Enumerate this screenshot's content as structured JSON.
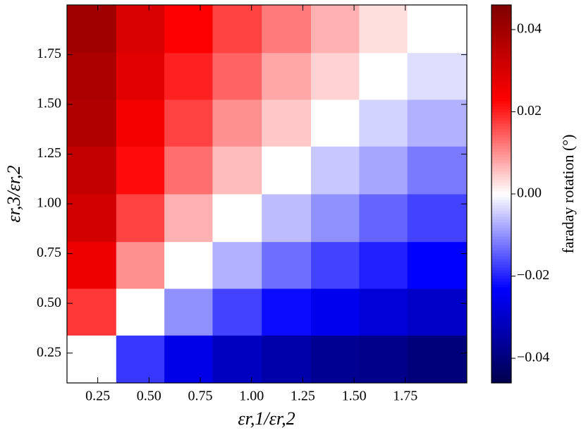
{
  "chart_data": {
    "type": "heatmap",
    "xlabel": "εr,1/εr,2",
    "ylabel": "εr,3/εr,2",
    "colorbar_label": "faraday rotation (°)",
    "colormap": "seismic",
    "x": [
      0.22,
      0.46,
      0.69,
      0.93,
      1.17,
      1.41,
      1.64,
      1.88
    ],
    "y": [
      0.22,
      0.46,
      0.69,
      0.93,
      1.17,
      1.41,
      1.64,
      1.88
    ],
    "z": [
      [
        0,
        -0.018,
        -0.026,
        -0.031,
        -0.034,
        -0.037,
        -0.038,
        -0.04
      ],
      [
        0.018,
        0,
        -0.01,
        -0.017,
        -0.022,
        -0.025,
        -0.028,
        -0.03
      ],
      [
        0.026,
        0.01,
        0,
        -0.007,
        -0.013,
        -0.017,
        -0.02,
        -0.023
      ],
      [
        0.031,
        0.017,
        0.007,
        0,
        -0.006,
        -0.01,
        -0.014,
        -0.017
      ],
      [
        0.034,
        0.022,
        0.013,
        0.006,
        0,
        -0.005,
        -0.008,
        -0.012
      ],
      [
        0.037,
        0.025,
        0.017,
        0.01,
        0.005,
        0,
        -0.004,
        -0.007
      ],
      [
        0.038,
        0.028,
        0.02,
        0.014,
        0.008,
        0.004,
        0,
        -0.003
      ],
      [
        0.04,
        0.03,
        0.023,
        0.017,
        0.012,
        0.007,
        0.003,
        0
      ]
    ],
    "xlim": [
      0.1,
      2.05
    ],
    "ylim": [
      0.1,
      2.0
    ],
    "xticks": [
      0.25,
      {
        "value": 0.5,
        "label": "0.50"
      },
      0.75,
      {
        "value": 1,
        "label": "1.00"
      },
      1.25,
      {
        "value": 1.5,
        "label": "1.50"
      },
      1.75
    ],
    "yticks": [
      0.25,
      {
        "value": 0.5,
        "label": "0.50"
      },
      0.75,
      {
        "value": 1,
        "label": "1.00"
      },
      1.25,
      {
        "value": 1.5,
        "label": "1.50"
      },
      1.75
    ],
    "clim": [
      -0.046,
      0.046
    ],
    "cticks": [
      {
        "value": -0.04,
        "label": "−0.04"
      },
      {
        "value": -0.02,
        "label": "−0.02"
      },
      {
        "value": 0,
        "label": "0.00"
      },
      0.02,
      0.04
    ]
  }
}
